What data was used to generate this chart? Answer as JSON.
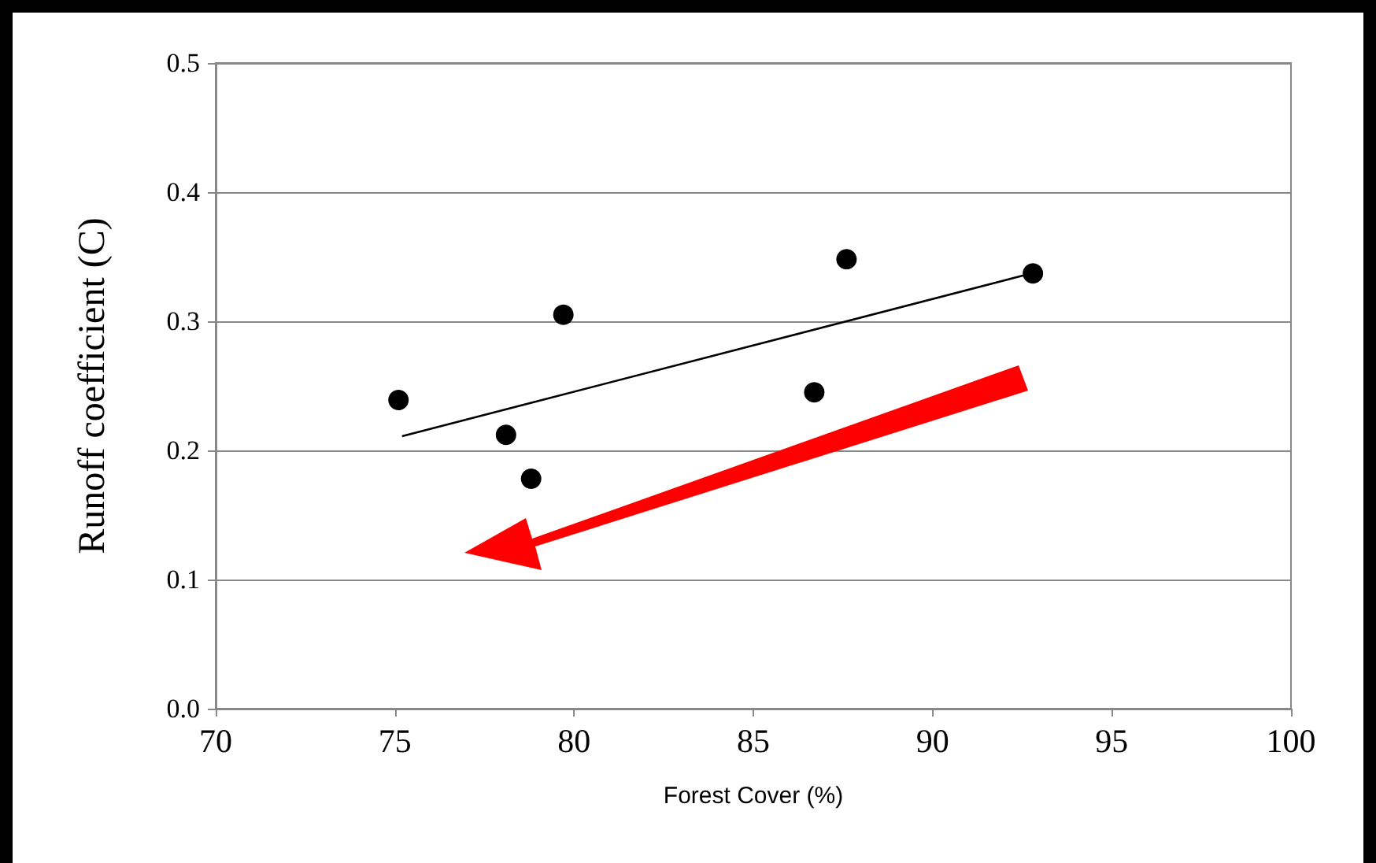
{
  "chart_data": {
    "type": "scatter",
    "xlabel": "Forest Cover (%)",
    "ylabel": "Runoff coefficient (C)",
    "series": [
      {
        "marker": "circle",
        "color": "#000000",
        "x": [
          75.1,
          78.1,
          78.8,
          79.7,
          86.7,
          87.6,
          92.8
        ],
        "values": [
          0.239,
          0.212,
          0.178,
          0.305,
          0.245,
          0.348,
          0.337
        ]
      },
      {
        "type": "line",
        "marker": "none",
        "color": "#000000",
        "x": [
          75.2,
          92.75
        ],
        "values": [
          0.211,
          0.337
        ]
      }
    ],
    "xlim": [
      70,
      100
    ],
    "xticks": [
      70,
      75,
      80,
      85,
      90,
      95,
      100
    ],
    "ylim": [
      0,
      0.5
    ],
    "yticks": [
      {
        "value": 0,
        "label": "0.0"
      },
      {
        "value": 0.1,
        "label": "0.1"
      },
      {
        "value": 0.2,
        "label": "0.2"
      },
      {
        "value": 0.3,
        "label": "0.3"
      },
      {
        "value": 0.4,
        "label": "0.4"
      },
      {
        "value": 0.5,
        "label": "0.5"
      }
    ],
    "grid": "y",
    "line_style": "solid"
  }
}
